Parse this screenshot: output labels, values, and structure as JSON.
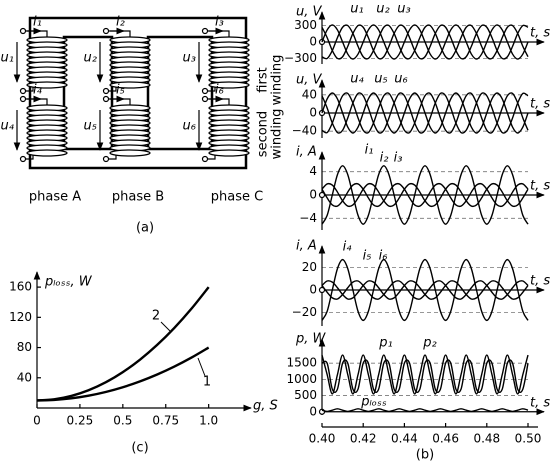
{
  "diagram": {
    "currents": [
      "i₁",
      "i₂",
      "i₃",
      "i₄",
      "i₅",
      "i₆"
    ],
    "voltages": [
      "u₁",
      "u₂",
      "u₃",
      "u₄",
      "u₅",
      "u₆"
    ],
    "phases": [
      "phase A",
      "phase B",
      "phase C"
    ],
    "windings": [
      [
        "first",
        "winding"
      ],
      [
        "second",
        "winding"
      ]
    ],
    "caption": "(a)"
  },
  "chart_data": [
    {
      "type": "line",
      "caption": "(b)",
      "xlabel": "t, s",
      "xlim": [
        0.4,
        0.5
      ],
      "xticks": [
        {
          "value": 0.4,
          "label": "0.40"
        },
        0.42,
        0.44,
        0.46,
        0.48,
        {
          "value": 0.5,
          "label": "0.50"
        }
      ],
      "x": [
        0.4,
        0.4025,
        0.405,
        0.4075,
        0.41,
        0.4125,
        0.415,
        0.4175,
        0.42,
        0.4225,
        0.425,
        0.4275,
        0.43,
        0.4325,
        0.435,
        0.4375,
        0.44,
        0.4425,
        0.445,
        0.4475,
        0.45,
        0.4525,
        0.455,
        0.4575,
        0.46,
        0.4625,
        0.465,
        0.4675,
        0.47,
        0.4725,
        0.475,
        0.4775,
        0.48,
        0.4825,
        0.485,
        0.4875,
        0.49,
        0.4925,
        0.495,
        0.4975,
        0.5
      ],
      "panels": [
        {
          "ylabel": "u, V",
          "ylim": [
            -400,
            400
          ],
          "yticks": [
            {
              "value": -300,
              "label": "−300"
            },
            0,
            300
          ],
          "series": [
            {
              "name": "u₁",
              "color": "#000000",
              "values": [
                0,
                219,
                310,
                219,
                0,
                -219,
                -310,
                -219,
                0,
                219,
                310,
                219,
                0,
                -219,
                -310,
                -219,
                0,
                219,
                310,
                219,
                0,
                -219,
                -310,
                -219,
                0,
                219,
                310,
                219,
                0,
                -219,
                -310,
                -219,
                0,
                219,
                310,
                219,
                0,
                -219,
                -310,
                -219,
                0
              ]
            },
            {
              "name": "u₂",
              "color": "#000000",
              "values": [
                -268,
                -299,
                -155,
                80,
                268,
                299,
                155,
                -80,
                -268,
                -299,
                -155,
                80,
                268,
                299,
                155,
                -80,
                -268,
                -299,
                -155,
                80,
                268,
                299,
                155,
                -80,
                -268,
                -299,
                -155,
                80,
                268,
                299,
                155,
                -80,
                -268,
                -299,
                -155,
                80,
                268,
                299,
                155,
                -80,
                -268
              ]
            },
            {
              "name": "u₃",
              "color": "#000000",
              "values": [
                268,
                80,
                -155,
                -299,
                -268,
                -80,
                155,
                299,
                268,
                80,
                -155,
                -299,
                -268,
                -80,
                155,
                299,
                268,
                80,
                -155,
                -299,
                -268,
                -80,
                155,
                299,
                268,
                80,
                -155,
                -299,
                -268,
                -80,
                155,
                299,
                268,
                80,
                -155,
                -299,
                -268,
                -80,
                155,
                299,
                268
              ]
            }
          ]
        },
        {
          "ylabel": "u, V",
          "ylim": [
            -55,
            55
          ],
          "yticks": [
            {
              "value": -40,
              "label": "−40"
            },
            0,
            40
          ],
          "series": [
            {
              "name": "u₄",
              "color": "#000000",
              "values": [
                0,
                31,
                44,
                31,
                0,
                -31,
                -44,
                -31,
                0,
                31,
                44,
                31,
                0,
                -31,
                -44,
                -31,
                0,
                31,
                44,
                31,
                0,
                -31,
                -44,
                -31,
                0,
                31,
                44,
                31,
                0,
                -31,
                -44,
                -31,
                0,
                31,
                44,
                31,
                0,
                -31,
                -44,
                -31,
                0
              ]
            },
            {
              "name": "u₅",
              "color": "#000000",
              "values": [
                -38,
                -43,
                -22,
                11,
                38,
                43,
                22,
                -11,
                -38,
                -43,
                -22,
                11,
                38,
                43,
                22,
                -11,
                -38,
                -43,
                -22,
                11,
                38,
                43,
                22,
                -11,
                -38,
                -43,
                -22,
                11,
                38,
                43,
                22,
                -11,
                -38,
                -43,
                -22,
                11,
                38,
                43,
                22,
                -11,
                -38
              ]
            },
            {
              "name": "u₆",
              "color": "#000000",
              "values": [
                38,
                11,
                -22,
                -43,
                -38,
                -11,
                22,
                43,
                38,
                11,
                -22,
                -43,
                -38,
                -11,
                22,
                43,
                38,
                11,
                -22,
                -43,
                -38,
                -11,
                22,
                43,
                38,
                11,
                -22,
                -43,
                -38,
                -11,
                22,
                43,
                38,
                11,
                -22,
                -43,
                -38,
                -11,
                22,
                43,
                38
              ]
            }
          ]
        },
        {
          "ylabel": "i, A",
          "ylim": [
            -6,
            6
          ],
          "yticks": [
            {
              "value": -4,
              "label": "−4"
            },
            0,
            4
          ],
          "series": [
            {
              "name": "i₁",
              "color": "#000000",
              "values": [
                -5,
                -3.5,
                0,
                3.5,
                5,
                3.5,
                0,
                -3.5,
                -5,
                -3.5,
                0,
                3.5,
                5,
                3.5,
                0,
                -3.5,
                -5,
                -3.5,
                0,
                3.5,
                5,
                3.5,
                0,
                -3.5,
                -5,
                -3.5,
                0,
                3.5,
                5,
                3.5,
                0,
                -3.5,
                -5,
                -3.5,
                0,
                3.5,
                5,
                3.5,
                0,
                -3.5,
                -5
              ]
            },
            {
              "name": "i₂",
              "color": "#000000",
              "values": [
                1,
                -0.5,
                -1.7,
                -1.9,
                -1,
                0.5,
                1.7,
                1.9,
                1,
                -0.5,
                -1.7,
                -1.9,
                -1,
                0.5,
                1.7,
                1.9,
                1,
                -0.5,
                -1.7,
                -1.9,
                -1,
                0.5,
                1.7,
                1.9,
                1,
                -0.5,
                -1.7,
                -1.9,
                -1,
                0.5,
                1.7,
                1.9,
                1,
                -0.5,
                -1.7,
                -1.9,
                -1,
                0.5,
                1.7,
                1.9,
                1
              ]
            },
            {
              "name": "i₃",
              "color": "#000000",
              "values": [
                1,
                1.9,
                1.7,
                0.5,
                -1,
                -1.9,
                -1.7,
                -0.5,
                1,
                1.9,
                1.7,
                0.5,
                -1,
                -1.9,
                -1.7,
                -0.5,
                1,
                1.9,
                1.7,
                0.5,
                -1,
                -1.9,
                -1.7,
                -0.5,
                1,
                1.9,
                1.7,
                0.5,
                -1,
                -1.9,
                -1.7,
                -0.5,
                1,
                1.9,
                1.7,
                0.5,
                -1,
                -1.9,
                -1.7,
                -0.5,
                1
              ]
            }
          ]
        },
        {
          "ylabel": "i, A",
          "ylim": [
            -32,
            32
          ],
          "yticks": [
            {
              "value": -20,
              "label": "−20"
            },
            0,
            20
          ],
          "series": [
            {
              "name": "i₄",
              "color": "#000000",
              "values": [
                -27,
                -19,
                0,
                19,
                27,
                19,
                0,
                -19,
                -27,
                -19,
                0,
                19,
                27,
                19,
                0,
                -19,
                -27,
                -19,
                0,
                19,
                27,
                19,
                0,
                -19,
                -27,
                -19,
                0,
                19,
                27,
                19,
                0,
                -19,
                -27,
                -19,
                0,
                19,
                27,
                19,
                0,
                -19,
                -27
              ]
            },
            {
              "name": "i₅",
              "color": "#000000",
              "values": [
                4,
                -2,
                -7,
                -8,
                -4,
                2,
                7,
                8,
                4,
                -2,
                -7,
                -8,
                -4,
                2,
                7,
                8,
                4,
                -2,
                -7,
                -8,
                -4,
                2,
                7,
                8,
                4,
                -2,
                -7,
                -8,
                -4,
                2,
                7,
                8,
                4,
                -2,
                -7,
                -8,
                -4,
                2,
                7,
                8,
                4
              ]
            },
            {
              "name": "i₆",
              "color": "#000000",
              "values": [
                4,
                8,
                7,
                2,
                -4,
                -8,
                -7,
                -2,
                4,
                8,
                7,
                2,
                -4,
                -8,
                -7,
                -2,
                4,
                8,
                7,
                2,
                -4,
                -8,
                -7,
                -2,
                4,
                8,
                7,
                2,
                -4,
                -8,
                -7,
                -2,
                4,
                8,
                7,
                2,
                -4,
                -8,
                -7,
                -2,
                4
              ]
            }
          ]
        },
        {
          "ylabel": "p, W",
          "ylim": [
            -100,
            2000
          ],
          "yticks": [
            0,
            500,
            1000,
            1500
          ],
          "series": [
            {
              "name": "p₁",
              "color": "#000000",
              "values": [
                1750,
                1150,
                550,
                1150,
                1750,
                1150,
                550,
                1150,
                1750,
                1150,
                550,
                1150,
                1750,
                1150,
                550,
                1150,
                1750,
                1150,
                550,
                1150,
                1750,
                1150,
                550,
                1150,
                1750,
                1150,
                550,
                1150,
                1750,
                1150,
                550,
                1150,
                1750,
                1150,
                550,
                1150,
                1750,
                1150,
                550,
                1150,
                1750
              ]
            },
            {
              "name": "p₂",
              "color": "#000000",
              "values": [
                1500,
                1500,
                700,
                700,
                1500,
                1500,
                700,
                700,
                1500,
                1500,
                700,
                700,
                1500,
                1500,
                700,
                700,
                1500,
                1500,
                700,
                700,
                1500,
                1500,
                700,
                700,
                1500,
                1500,
                700,
                700,
                1500,
                1500,
                700,
                700,
                1500,
                1500,
                700,
                700,
                1500,
                1500,
                700,
                700,
                1500
              ]
            },
            {
              "name": "pₗₒₛₛ",
              "color": "#000000",
              "values": [
                50,
                10,
                50,
                90,
                50,
                10,
                50,
                90,
                50,
                10,
                50,
                90,
                50,
                10,
                50,
                90,
                50,
                10,
                50,
                90,
                50,
                10,
                50,
                90,
                50,
                10,
                50,
                90,
                50,
                10,
                50,
                90,
                50,
                10,
                50,
                90,
                50,
                10,
                50,
                90,
                50
              ]
            }
          ]
        }
      ]
    },
    {
      "type": "line",
      "caption": "(c)",
      "xlabel": "g, S",
      "ylabel": "pₗₒₛₛ, W",
      "xlim": [
        0,
        1.2
      ],
      "ylim": [
        0,
        180
      ],
      "xticks": [
        0,
        0.25,
        0.5,
        0.75,
        {
          "value": 1,
          "label": "1.0"
        }
      ],
      "yticks": [
        40,
        80,
        120,
        160
      ],
      "x": [
        0,
        0.1,
        0.2,
        0.3,
        0.4,
        0.5,
        0.6,
        0.7,
        0.8,
        0.9,
        1
      ],
      "series": [
        {
          "name": "1",
          "color": "#000000",
          "values": [
            10,
            10.7,
            12.8,
            16.3,
            21.2,
            27.5,
            35.2,
            44.3,
            54.8,
            66.7,
            80
          ]
        },
        {
          "name": "2",
          "color": "#000000",
          "values": [
            10,
            11.5,
            16,
            23.5,
            34,
            47.5,
            64,
            83.5,
            106,
            131.5,
            160
          ]
        }
      ]
    }
  ]
}
